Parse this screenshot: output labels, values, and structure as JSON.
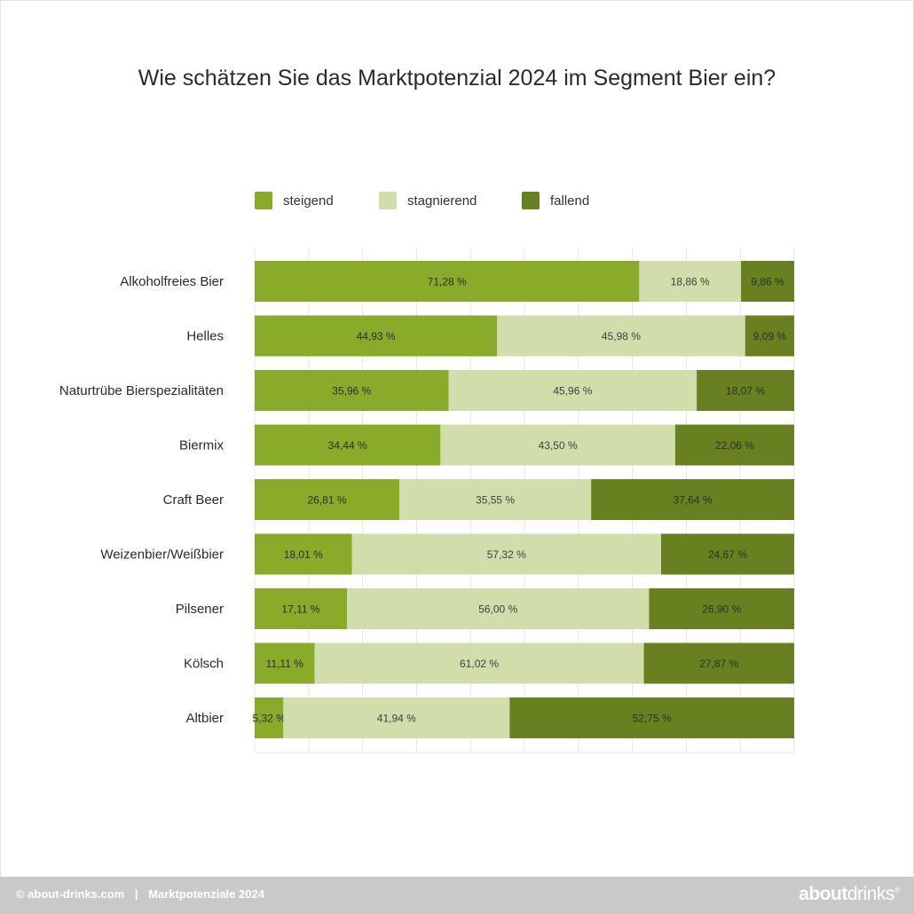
{
  "title": "Wie schätzen Sie das Marktpotenzial 2024 im Segment Bier ein?",
  "colors": {
    "steigend": "#8aaa2a",
    "stagnierend": "#d1deab",
    "fallend": "#68801f",
    "grid": "#e6e6e6"
  },
  "legend": [
    {
      "label": "steigend",
      "color": "#8aaa2a"
    },
    {
      "label": "stagnierend",
      "color": "#d1deab"
    },
    {
      "label": "fallend",
      "color": "#68801f"
    }
  ],
  "chart_data": {
    "type": "bar",
    "orientation": "horizontal",
    "stacked": true,
    "title": "Wie schätzen Sie das Marktpotenzial 2024 im Segment Bier ein?",
    "xlim": [
      0,
      100
    ],
    "grid": true,
    "legend_position": "top",
    "categories": [
      "Alkoholfreies Bier",
      "Helles",
      "Naturtrübe Bierspezialitäten",
      "Biermix",
      "Craft Beer",
      "Weizenbier/Weißbier",
      "Pilsener",
      "Kölsch",
      "Altbier"
    ],
    "series": [
      {
        "name": "steigend",
        "values": [
          71.28,
          44.93,
          35.96,
          34.44,
          26.81,
          18.01,
          17.11,
          11.11,
          5.32
        ],
        "labels": [
          "71,28 %",
          "44,93 %",
          "35,96 %",
          "34,44 %",
          "26,81 %",
          "18,01 %",
          "17,11 %",
          "11,11 %",
          "5,32 %"
        ]
      },
      {
        "name": "stagnierend",
        "values": [
          18.86,
          45.98,
          45.96,
          43.5,
          35.55,
          57.32,
          56.0,
          61.02,
          41.94
        ],
        "labels": [
          "18,86 %",
          "45,98 %",
          "45,96 %",
          "43,50 %",
          "35,55 %",
          "57,32 %",
          "56,00 %",
          "61,02 %",
          "41,94 %"
        ]
      },
      {
        "name": "fallend",
        "values": [
          9.86,
          9.09,
          18.07,
          22.06,
          37.64,
          24.67,
          26.9,
          27.87,
          52.75
        ],
        "labels": [
          "9,86 %",
          "9,09 %",
          "18,07 %",
          "22,06 %",
          "37,64 %",
          "24,67 %",
          "26,90 %",
          "27,87 %",
          "52,75 %"
        ]
      }
    ]
  },
  "footer": {
    "source": "© about-drinks.com",
    "separator": "|",
    "subtitle": "Marktpotenziale 2024",
    "logo_bold": "about",
    "logo_light": "drinks",
    "logo_mark": "®"
  }
}
